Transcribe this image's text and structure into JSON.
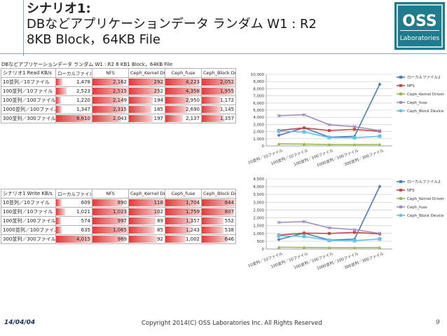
{
  "slide": {
    "title_line1": "シナリオ1:",
    "title_line2": "DBなどアプリケーションデータ ランダム W1 : R2",
    "title_line3": "8KB Block，64KB File",
    "logo_top": "OSS",
    "logo_bottom": "Laboratories",
    "footer_date": "14/04/04",
    "footer_copyright": "Copyright 2014(C) OSS Laboratories Inc. All Rights Reserved",
    "page_number": "9",
    "table_caption": "DBなどアプリケーションデータ ランダム W1 : R2 8 KB1 Block，64KB File"
  },
  "colors": {
    "local": "#4a7ebb",
    "nfs": "#be4b48",
    "ceph_kernel": "#98b954",
    "ceph_fuse": "#a28dc0",
    "ceph_block": "#64c3e6"
  },
  "read_table": {
    "headers": [
      "シナリオ1 Read KB/s",
      "ローカルファイル2",
      "NFS",
      "Ceph_Kernel Drive",
      "Ceph_fuse",
      "Ceph_Block Device"
    ],
    "rows": [
      {
        "label": "10並列／10ファイル",
        "cells": [
          "1,478",
          "2,162",
          "292",
          "4,223",
          "2,052"
        ],
        "values": [
          1478,
          2162,
          292,
          4223,
          2052
        ]
      },
      {
        "label": "100並列／10ファイル",
        "cells": [
          "2,523",
          "2,515",
          "252",
          "4,358",
          "1,955"
        ],
        "values": [
          2523,
          2515,
          252,
          4358,
          1955
        ]
      },
      {
        "label": "100並列／100ファイル",
        "cells": [
          "1,220",
          "2,149",
          "194",
          "2,950",
          "1,172"
        ],
        "values": [
          1220,
          2149,
          194,
          2950,
          1172
        ]
      },
      {
        "label": "1000並列／100ファイル",
        "cells": [
          "1,347",
          "2,315",
          "185",
          "2,690",
          "1,145"
        ],
        "values": [
          1347,
          2315,
          185,
          2690,
          1145
        ]
      },
      {
        "label": "300並列／300ファイル",
        "cells": [
          "8,610",
          "2,043",
          "197",
          "2,137",
          "1,357"
        ],
        "values": [
          8610,
          2043,
          197,
          2137,
          1357
        ]
      }
    ]
  },
  "write_table": {
    "headers": [
      "シナリオ1 Write KB/s",
      "ローカルファイル2",
      "NFS",
      "Ceph_Kernel Drive",
      "Ceph_fuse",
      "Ceph_Block Device"
    ],
    "rows": [
      {
        "label": "10並列／10ファイル",
        "cells": [
          "609",
          "890",
          "118",
          "1,704",
          "844"
        ],
        "values": [
          609,
          890,
          118,
          1704,
          844
        ]
      },
      {
        "label": "100並列／10ファイル",
        "cells": [
          "1,021",
          "1,023",
          "102",
          "1,759",
          "807"
        ],
        "values": [
          1021,
          1023,
          102,
          1759,
          807
        ]
      },
      {
        "label": "100並列／100ファイル",
        "cells": [
          "574",
          "997",
          "89",
          "1,357",
          "552"
        ],
        "values": [
          574,
          997,
          89,
          1357,
          552
        ]
      },
      {
        "label": "1000並列／100ファイル",
        "cells": [
          "635",
          "1,065",
          "85",
          "1,243",
          "538"
        ],
        "values": [
          635,
          1065,
          85,
          1243,
          538
        ]
      },
      {
        "label": "300並列／300ファイル",
        "cells": [
          "4,015",
          "969",
          "92",
          "1,002",
          "646"
        ],
        "values": [
          4015,
          969,
          92,
          1002,
          646
        ]
      }
    ]
  },
  "chart_data": [
    {
      "type": "line",
      "categories": [
        "10並列／10ファイル",
        "100並列／10ファイル",
        "100並列／100ファイル",
        "1000並列／100ファイル",
        "300並列／300ファイル"
      ],
      "ylim": [
        0,
        10000
      ],
      "yticks": [
        "0",
        "1,000",
        "2,000",
        "3,000",
        "4,000",
        "5,000",
        "6,000",
        "7,000",
        "8,000",
        "9,000",
        "10,000"
      ],
      "legend_position": "right",
      "series": [
        {
          "name": "ローカルファイル2",
          "values": [
            1478,
            2523,
            1220,
            1347,
            8610
          ]
        },
        {
          "name": "NFS",
          "values": [
            2162,
            2515,
            2149,
            2315,
            2043
          ]
        },
        {
          "name": "Ceph_Kernel Driver",
          "values": [
            292,
            252,
            194,
            185,
            197
          ]
        },
        {
          "name": "Ceph_fuse",
          "values": [
            4223,
            4358,
            2950,
            2690,
            2137
          ]
        },
        {
          "name": "Ceph_Block Device",
          "values": [
            2052,
            1955,
            1172,
            1145,
            1357
          ]
        }
      ]
    },
    {
      "type": "line",
      "categories": [
        "10並列／10ファイル",
        "100並列／10ファイル",
        "100並列／100ファイル",
        "1000並列／100ファイル",
        "300並列／300ファイル"
      ],
      "ylim": [
        0,
        4500
      ],
      "yticks": [
        "0",
        "500",
        "1,000",
        "1,500",
        "2,000",
        "2,500",
        "3,000",
        "3,500",
        "4,000",
        "4,500"
      ],
      "legend_position": "right",
      "series": [
        {
          "name": "ローカルファイル2",
          "values": [
            609,
            1021,
            574,
            635,
            4015
          ]
        },
        {
          "name": "NFS",
          "values": [
            890,
            1023,
            997,
            1065,
            969
          ]
        },
        {
          "name": "Ceph_Kernel Driver",
          "values": [
            118,
            102,
            89,
            85,
            92
          ]
        },
        {
          "name": "Ceph_fuse",
          "values": [
            1704,
            1759,
            1357,
            1243,
            1002
          ]
        },
        {
          "name": "Ceph_Block Device",
          "values": [
            844,
            807,
            552,
            538,
            646
          ]
        }
      ]
    }
  ]
}
